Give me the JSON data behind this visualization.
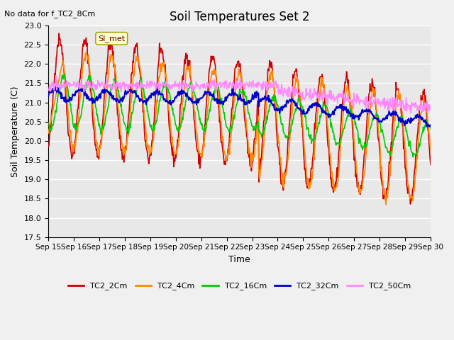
{
  "title": "Soil Temperatures Set 2",
  "subtitle": "No data for f_TC2_8Cm",
  "xlabel": "Time",
  "ylabel": "Soil Temperature (C)",
  "ylim": [
    17.5,
    23.0
  ],
  "xlim": [
    0,
    15
  ],
  "yticks": [
    17.5,
    18.0,
    18.5,
    19.0,
    19.5,
    20.0,
    20.5,
    21.0,
    21.5,
    22.0,
    22.5,
    23.0
  ],
  "xtick_labels": [
    "Sep 15",
    "Sep 16",
    "Sep 17",
    "Sep 18",
    "Sep 19",
    "Sep 20",
    "Sep 21",
    "Sep 22",
    "Sep 23",
    "Sep 24",
    "Sep 25",
    "Sep 26",
    "Sep 27",
    "Sep 28",
    "Sep 29",
    "Sep 30"
  ],
  "series_colors": {
    "TC2_2Cm": "#cc0000",
    "TC2_4Cm": "#ff8800",
    "TC2_16Cm": "#00cc00",
    "TC2_32Cm": "#0000cc",
    "TC2_50Cm": "#ff88ff"
  },
  "legend_label": "SI_met",
  "plot_bg_color": "#e8e8e8",
  "grid_color": "#ffffff"
}
